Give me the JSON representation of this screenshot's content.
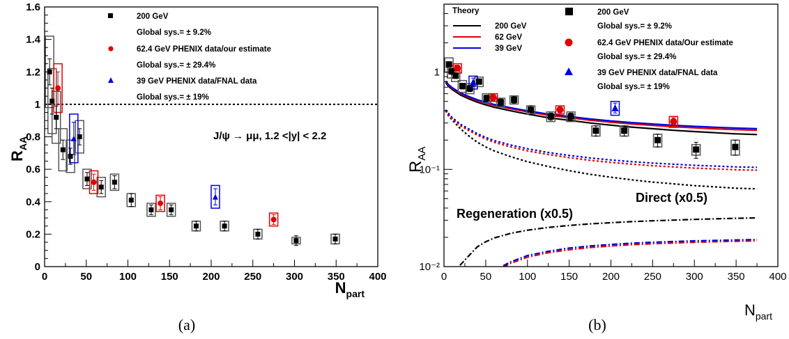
{
  "chart_data": [
    {
      "type": "scatter",
      "caption": "(a)",
      "xlabel": "N",
      "xlabel_sub": "part",
      "ylabel": "R",
      "ylabel_sub": "AA",
      "xlim": [
        0,
        400
      ],
      "ylim": [
        0,
        1.6
      ],
      "x_ticks": [
        "0",
        "50",
        "100",
        "150",
        "200",
        "250",
        "300",
        "350",
        "400"
      ],
      "y_ticks": [
        "0",
        "0.2",
        "0.4",
        "0.6",
        "0.8",
        "1",
        "1.2",
        "1.4",
        "1.6"
      ],
      "reference_line": 1.0,
      "annotation": "J/ψ → μμ, 1.2 <|y| < 2.2",
      "legend": [
        {
          "label": "200 GeV",
          "marker": "square",
          "color": "#000000"
        },
        {
          "label": "Global sys.= ± 9.2%",
          "marker": "none"
        },
        {
          "label": "62.4 GeV PHENIX data/our estimate",
          "marker": "circle",
          "color": "#e00000"
        },
        {
          "label": "Global sys.= ± 29.4%",
          "marker": "none"
        },
        {
          "label": "39 GeV PHENIX data/FNAL data",
          "marker": "triangle",
          "color": "#0000dd"
        },
        {
          "label": "Global sys.= ± 19%",
          "marker": "none"
        }
      ],
      "series": [
        {
          "name": "200 GeV",
          "marker": "square",
          "color": "#000000",
          "box_color": "#555555",
          "points": [
            [
              6,
              1.2,
              0.08,
              0.22
            ],
            [
              9,
              1.02,
              0.08,
              0.2
            ],
            [
              14,
              0.92,
              0.07,
              0.16
            ],
            [
              22,
              0.72,
              0.06,
              0.13
            ],
            [
              31,
              0.68,
              0.05,
              0.1
            ],
            [
              42,
              0.8,
              0.05,
              0.1
            ],
            [
              51,
              0.54,
              0.04,
              0.06
            ],
            [
              68,
              0.49,
              0.04,
              0.06
            ],
            [
              84,
              0.52,
              0.04,
              0.05
            ],
            [
              104,
              0.41,
              0.04,
              0.04
            ],
            [
              128,
              0.35,
              0.03,
              0.04
            ],
            [
              152,
              0.35,
              0.03,
              0.04
            ],
            [
              182,
              0.25,
              0.03,
              0.03
            ],
            [
              216,
              0.25,
              0.03,
              0.03
            ],
            [
              256,
              0.2,
              0.03,
              0.03
            ],
            [
              302,
              0.16,
              0.03,
              0.02
            ],
            [
              349,
              0.17,
              0.03,
              0.03
            ]
          ]
        },
        {
          "name": "62.4 GeV PHENIX data/our estimate",
          "marker": "circle",
          "color": "#e00000",
          "box_color": "#e00000",
          "points": [
            [
              16,
              1.1,
              0.1,
              0.15
            ],
            [
              59,
              0.52,
              0.05,
              0.07
            ],
            [
              139,
              0.39,
              0.04,
              0.05
            ],
            [
              275,
              0.29,
              0.03,
              0.04
            ]
          ]
        },
        {
          "name": "39 GeV PHENIX data/FNAL data",
          "marker": "triangle",
          "color": "#0000dd",
          "box_color": "#0000dd",
          "points": [
            [
              35,
              0.79,
              0.1,
              0.15
            ],
            [
              205,
              0.43,
              0.05,
              0.07
            ]
          ]
        }
      ]
    },
    {
      "type": "line",
      "caption": "(b)",
      "xlabel": "N",
      "xlabel_sub": "part",
      "ylabel": "R",
      "ylabel_sub": "AA",
      "xlim": [
        0,
        400
      ],
      "ylim": [
        0.01,
        5
      ],
      "yscale": "log",
      "x_ticks": [
        "0",
        "50",
        "100",
        "150",
        "200",
        "250",
        "300",
        "350",
        "400"
      ],
      "y_tick_labels": [
        "10⁻²",
        "10⁻¹",
        "1"
      ],
      "y_tick_values": [
        0.01,
        0.1,
        1
      ],
      "theory_legend_title": "Theory",
      "theory_legend": [
        {
          "label": "200 GeV",
          "color": "#000000"
        },
        {
          "label": "62 GeV",
          "color": "#e00000"
        },
        {
          "label": "39 GeV",
          "color": "#0000dd"
        }
      ],
      "data_legend": [
        {
          "label": "200 GeV",
          "marker": "square",
          "color": "#000000"
        },
        {
          "label": "Global sys.= ± 9.2%",
          "marker": "none"
        },
        {
          "label": "62.4 GeV PHENIX data/Our estimate",
          "marker": "circle",
          "color": "#e00000"
        },
        {
          "label": "Global sys.= ± 29.4%",
          "marker": "none"
        },
        {
          "label": "39 GeV PHENIX data/FNAL data",
          "marker": "triangle",
          "color": "#0000dd"
        },
        {
          "label": "Global sys.= ± 19%",
          "marker": "none"
        }
      ],
      "annotations": [
        "Direct (x0.5)",
        "Regeneration (x0.5)"
      ],
      "x_grid": [
        2,
        5,
        10,
        20,
        30,
        40,
        50,
        60,
        80,
        100,
        125,
        150,
        175,
        200,
        225,
        250,
        275,
        300,
        325,
        350,
        375
      ],
      "curves": [
        {
          "name": "Total 200 GeV",
          "style": "solid",
          "color": "#000000",
          "y": [
            0.78,
            0.72,
            0.66,
            0.58,
            0.53,
            0.49,
            0.46,
            0.435,
            0.4,
            0.37,
            0.34,
            0.32,
            0.3,
            0.285,
            0.272,
            0.262,
            0.252,
            0.245,
            0.238,
            0.232,
            0.228
          ]
        },
        {
          "name": "Total 62 GeV",
          "style": "solid",
          "color": "#e00000",
          "y": [
            0.8,
            0.74,
            0.68,
            0.6,
            0.55,
            0.51,
            0.48,
            0.455,
            0.42,
            0.39,
            0.36,
            0.34,
            0.32,
            0.305,
            0.293,
            0.283,
            0.274,
            0.267,
            0.261,
            0.256,
            0.252
          ]
        },
        {
          "name": "Total 39 GeV",
          "style": "solid",
          "color": "#0000dd",
          "y": [
            0.81,
            0.75,
            0.69,
            0.61,
            0.56,
            0.52,
            0.49,
            0.465,
            0.43,
            0.4,
            0.37,
            0.35,
            0.33,
            0.315,
            0.303,
            0.293,
            0.284,
            0.277,
            0.271,
            0.266,
            0.262
          ]
        },
        {
          "name": "Direct 200 GeV",
          "style": "dashed",
          "color": "#000000",
          "y": [
            0.4,
            0.36,
            0.32,
            0.26,
            0.22,
            0.19,
            0.17,
            0.155,
            0.135,
            0.12,
            0.107,
            0.097,
            0.089,
            0.083,
            0.078,
            0.074,
            0.071,
            0.068,
            0.066,
            0.064,
            0.063
          ]
        },
        {
          "name": "Direct 62 GeV",
          "style": "dashed",
          "color": "#e00000",
          "y": [
            0.4,
            0.37,
            0.33,
            0.28,
            0.25,
            0.225,
            0.205,
            0.19,
            0.17,
            0.155,
            0.142,
            0.132,
            0.124,
            0.118,
            0.113,
            0.109,
            0.106,
            0.103,
            0.101,
            0.099,
            0.098
          ]
        },
        {
          "name": "Direct 39 GeV",
          "style": "dashed",
          "color": "#0000dd",
          "y": [
            0.41,
            0.38,
            0.34,
            0.29,
            0.26,
            0.233,
            0.213,
            0.198,
            0.178,
            0.163,
            0.149,
            0.139,
            0.131,
            0.125,
            0.12,
            0.116,
            0.113,
            0.11,
            0.108,
            0.106,
            0.105
          ]
        },
        {
          "name": "Regeneration 200 GeV",
          "style": "dashdot",
          "color": "#000000",
          "x": [
            10,
            20,
            30,
            40,
            50,
            60,
            80,
            100,
            125,
            150,
            175,
            200,
            225,
            250,
            275,
            300,
            325,
            350,
            375
          ],
          "y": [
            0.0085,
            0.0105,
            0.013,
            0.016,
            0.018,
            0.0197,
            0.022,
            0.0237,
            0.0253,
            0.0265,
            0.0275,
            0.0283,
            0.029,
            0.0296,
            0.0301,
            0.0306,
            0.031,
            0.0314,
            0.0317
          ]
        },
        {
          "name": "Regeneration 62 GeV",
          "style": "dashdot",
          "color": "#e00000",
          "x": [
            60,
            70,
            80,
            100,
            125,
            150,
            175,
            200,
            225,
            250,
            275,
            300,
            325,
            350,
            375
          ],
          "y": [
            0.0085,
            0.0098,
            0.0108,
            0.0125,
            0.0139,
            0.0149,
            0.0157,
            0.0163,
            0.0168,
            0.0172,
            0.0175,
            0.0178,
            0.018,
            0.0182,
            0.0184
          ]
        },
        {
          "name": "Regeneration 39 GeV",
          "style": "dashdot",
          "color": "#0000dd",
          "x": [
            60,
            70,
            80,
            100,
            125,
            150,
            175,
            200,
            225,
            250,
            275,
            300,
            325,
            350,
            375
          ],
          "y": [
            0.0088,
            0.0101,
            0.0112,
            0.013,
            0.0144,
            0.0155,
            0.0163,
            0.0169,
            0.0174,
            0.0178,
            0.0181,
            0.0184,
            0.0186,
            0.0188,
            0.019
          ]
        }
      ],
      "series": [
        {
          "name": "200 GeV",
          "marker": "square",
          "color": "#000000",
          "box_color": "#555555",
          "points": [
            [
              6,
              1.2,
              0.08,
              0.2
            ],
            [
              9,
              1.02,
              0.07,
              0.15
            ],
            [
              14,
              0.92,
              0.06,
              0.12
            ],
            [
              22,
              0.72,
              0.05,
              0.1
            ],
            [
              31,
              0.68,
              0.05,
              0.08
            ],
            [
              42,
              0.8,
              0.05,
              0.09
            ],
            [
              51,
              0.54,
              0.04,
              0.06
            ],
            [
              68,
              0.49,
              0.04,
              0.05
            ],
            [
              84,
              0.52,
              0.04,
              0.05
            ],
            [
              104,
              0.41,
              0.04,
              0.04
            ],
            [
              128,
              0.35,
              0.03,
              0.04
            ],
            [
              152,
              0.35,
              0.03,
              0.04
            ],
            [
              182,
              0.25,
              0.03,
              0.03
            ],
            [
              216,
              0.25,
              0.03,
              0.03
            ],
            [
              256,
              0.2,
              0.03,
              0.03
            ],
            [
              302,
              0.16,
              0.03,
              0.02
            ],
            [
              349,
              0.17,
              0.03,
              0.03
            ]
          ]
        },
        {
          "name": "62.4 GeV PHENIX data/Our estimate",
          "marker": "circle",
          "color": "#e00000",
          "box_color": "#e00000",
          "points": [
            [
              16,
              1.1,
              0.08,
              0.12
            ],
            [
              59,
              0.55,
              0.04,
              0.05
            ],
            [
              139,
              0.41,
              0.03,
              0.04
            ],
            [
              275,
              0.31,
              0.03,
              0.04
            ]
          ]
        },
        {
          "name": "39 GeV PHENIX data/FNAL data",
          "marker": "triangle",
          "color": "#0000dd",
          "box_color": "#0000dd",
          "points": [
            [
              35,
              0.79,
              0.08,
              0.12
            ],
            [
              205,
              0.43,
              0.05,
              0.07
            ]
          ]
        }
      ]
    }
  ]
}
